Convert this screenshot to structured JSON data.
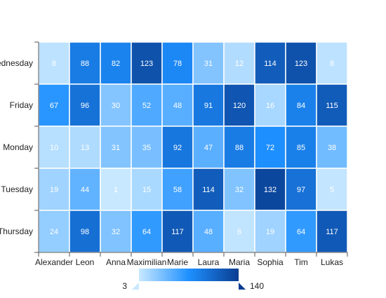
{
  "chart_data": {
    "type": "heatmap",
    "title": "",
    "xlabel": "",
    "ylabel": "",
    "x_categories": [
      "Alexander",
      "Leon",
      "Anna",
      "Maximilian",
      "Marie",
      "Laura",
      "Maria",
      "Sophia",
      "Tim",
      "Lukas"
    ],
    "y_categories": [
      "Wednesday",
      "Friday",
      "Monday",
      "Tuesday",
      "Thursday"
    ],
    "values": [
      [
        8,
        88,
        82,
        123,
        78,
        31,
        12,
        114,
        123,
        8
      ],
      [
        67,
        96,
        30,
        52,
        48,
        91,
        120,
        16,
        84,
        115
      ],
      [
        10,
        13,
        31,
        35,
        92,
        47,
        88,
        72,
        85,
        38
      ],
      [
        19,
        44,
        1,
        15,
        58,
        114,
        32,
        132,
        97,
        5
      ],
      [
        24,
        98,
        32,
        64,
        117,
        48,
        6,
        19,
        64,
        117
      ]
    ],
    "color_scale": {
      "min": 3,
      "max": 140,
      "min_label": "3",
      "max_label": "140",
      "colors": [
        "#c8e8ff",
        "#1e90ff",
        "#0a3d91"
      ]
    },
    "data_labels": true,
    "legend_placement": "bottom-center"
  }
}
